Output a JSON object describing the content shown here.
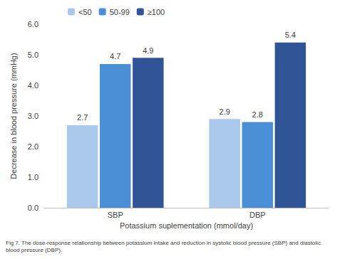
{
  "chart_data": {
    "type": "bar",
    "categories": [
      "SBP",
      "DBP"
    ],
    "series": [
      {
        "name": "<50",
        "color": "#a9c8ec",
        "values": [
          2.7,
          2.9
        ]
      },
      {
        "name": "50-99",
        "color": "#4a8fd6",
        "values": [
          4.7,
          2.8
        ]
      },
      {
        "name": "≥100",
        "color": "#2f5597",
        "values": [
          4.9,
          5.4
        ]
      }
    ],
    "x_label": "Potassium suplementation (mmol/day)",
    "y_label": "Decrease in blood pressure (mmHg)",
    "caption": "Fig 7. The dose-response relationship between potassium intake and reduction in systolic blood pressure (SBP) and diastolic blood pressure (DBP).",
    "ylim": [
      0,
      6
    ],
    "yticks": [
      {
        "value": 0,
        "label": "0.0"
      },
      {
        "value": 1,
        "label": "1.0"
      },
      {
        "value": 2,
        "label": "2.0"
      },
      {
        "value": 3,
        "label": "3.0"
      },
      {
        "value": 4,
        "label": "4.0"
      },
      {
        "value": 5,
        "label": "5.0"
      },
      {
        "value": 6,
        "label": "6.0"
      }
    ],
    "grid": false,
    "legend": "top-left",
    "data_labels": true
  }
}
